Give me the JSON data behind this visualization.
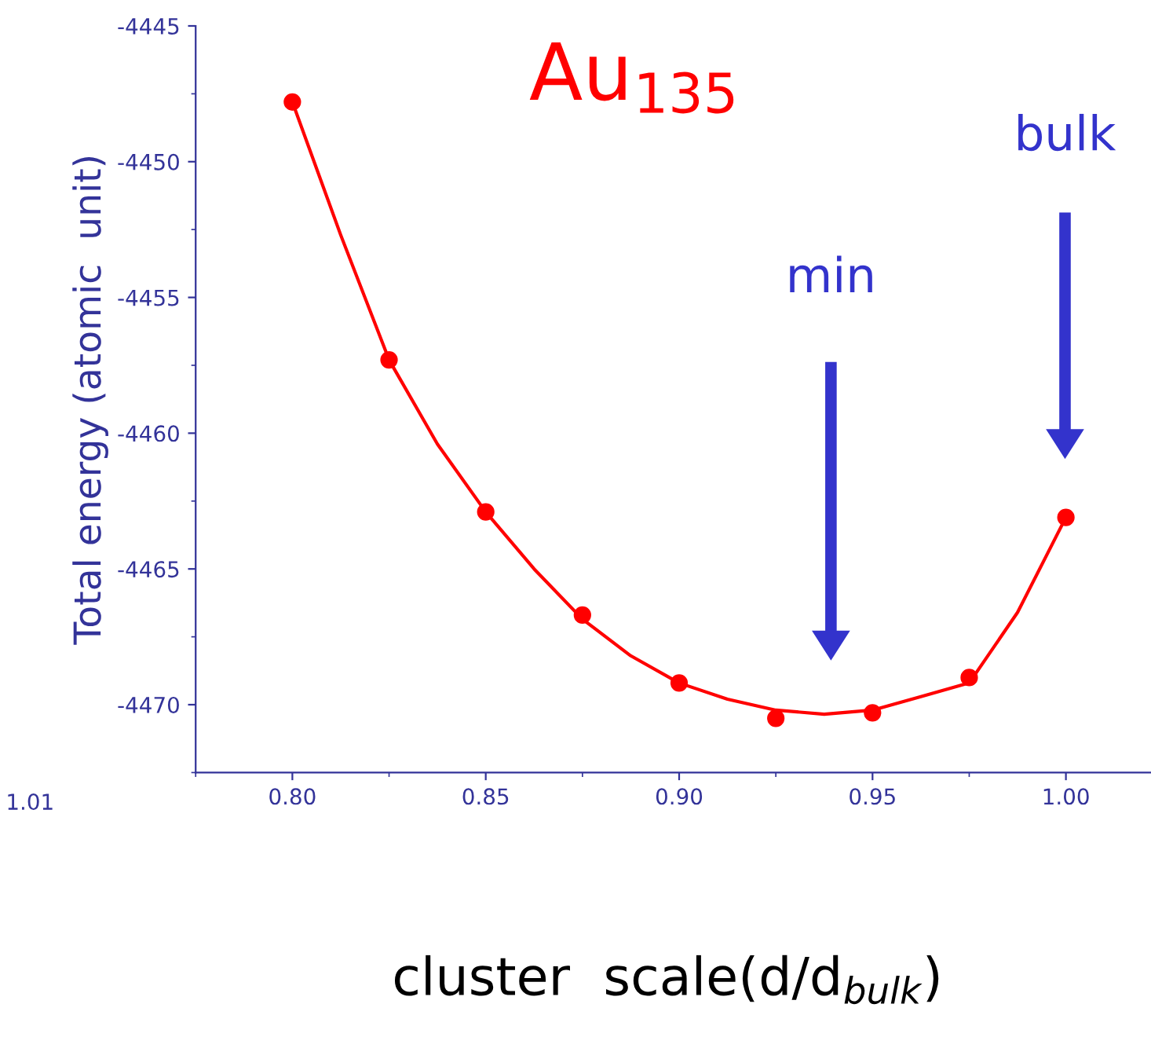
{
  "chart_data": {
    "type": "scatter",
    "title": "Au$_{135}$",
    "xlabel": "cluster  scale(d/d$_{bulk}$)",
    "ylabel": "Total energy (atomic  unit)",
    "x": [
      0.8,
      0.825,
      0.85,
      0.875,
      0.9,
      0.925,
      0.95,
      0.975,
      1.0
    ],
    "series": [
      {
        "color": "#ff0000",
        "marker": "circle",
        "values": [
          -4447.8,
          -4457.3,
          -4462.9,
          -4466.7,
          -4469.2,
          -4470.5,
          -4470.3,
          -4469.0,
          -4463.1
        ]
      },
      {
        "type": "line",
        "color": "#ff0000",
        "marker": "none",
        "x": [
          0.8,
          0.8125,
          0.825,
          0.8375,
          0.85,
          0.8625,
          0.875,
          0.8875,
          0.9,
          0.9125,
          0.925,
          0.9375,
          0.95,
          0.9625,
          0.975,
          0.9875,
          1.0
        ],
        "values": [
          -4447.8,
          -4452.7,
          -4457.3,
          -4460.4,
          -4462.9,
          -4465.0,
          -4466.85,
          -4468.2,
          -4469.2,
          -4469.8,
          -4470.2,
          -4470.35,
          -4470.2,
          -4469.7,
          -4469.2,
          -4466.6,
          -4463.1
        ]
      }
    ],
    "xlim": [
      0.775,
      1.022
    ],
    "xticks": [
      {
        "value": 0.8,
        "label": "0.80"
      },
      {
        "value": 0.85,
        "label": "0.85"
      },
      {
        "value": 0.9,
        "label": "0.90"
      },
      {
        "value": 0.95,
        "label": "0.95"
      },
      {
        "value": 1.0,
        "label": "1.00"
      }
    ],
    "ylim": [
      -4472.5,
      -4445
    ],
    "yticks": [
      -4470,
      -4465,
      -4460,
      -4455,
      -4450,
      -4445
    ],
    "grid": false,
    "legend": false,
    "annotations": [
      "min",
      "bulk",
      "1.01"
    ]
  }
}
